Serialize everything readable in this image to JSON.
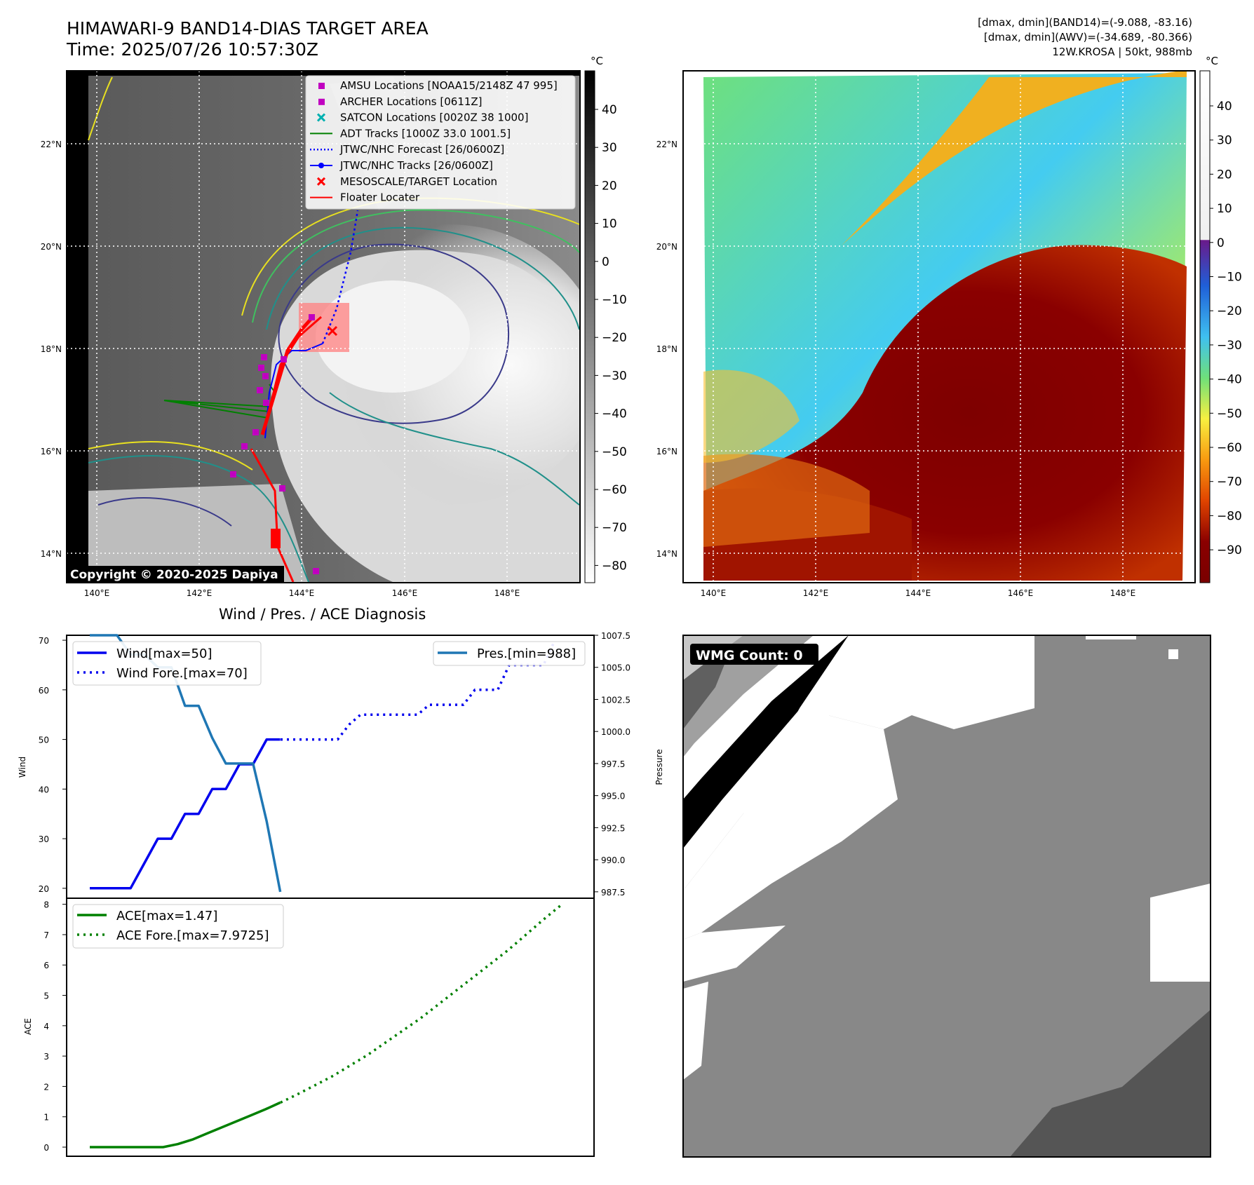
{
  "header": {
    "title_line1": "HIMAWARI-9 BAND14-DIAS TARGET AREA",
    "title_line2": "Time: 2025/07/26 10:57:30Z",
    "meta_line1": "[dmax, dmin](BAND14)=(-9.088, -83.16)",
    "meta_line2": "[dmax, dmin](AWV)=(-34.689, -80.366)",
    "meta_line3": "12W.KROSA | 50kt, 988mb"
  },
  "copyright": "Copyright © 2020-2025 Dapiya",
  "diagnosis_title": "Wind / Pres. / ACE Diagnosis",
  "wmg_label": "WMG Count: 0",
  "maps": {
    "lat_labels": [
      "22°N",
      "20°N",
      "18°N",
      "16°N",
      "14°N"
    ],
    "lon_labels": [
      "140°E",
      "142°E",
      "144°E",
      "146°E",
      "148°E"
    ],
    "legend": [
      {
        "marker": "square",
        "color": "#c000c0",
        "label": "AMSU Locations [NOAA15/2148Z 47 995]"
      },
      {
        "marker": "square",
        "color": "#c000c0",
        "label": "ARCHER Locations [0611Z]"
      },
      {
        "marker": "x",
        "color": "#00b0b0",
        "label": "SATCON Locations [0020Z 38 1000]"
      },
      {
        "marker": "line",
        "color": "#008000",
        "label": "ADT Tracks [1000Z 33.0 1001.5]"
      },
      {
        "marker": "dotted",
        "color": "#0000ff",
        "label": "JTWC/NHC Forecast [26/0600Z]"
      },
      {
        "marker": "dotline",
        "color": "#0000ff",
        "label": "JTWC/NHC Tracks [26/0600Z]"
      },
      {
        "marker": "x",
        "color": "#ff0000",
        "label": "MESOSCALE/TARGET Location"
      },
      {
        "marker": "line",
        "color": "#ff0000",
        "label": "Floater Locater"
      }
    ],
    "colorbar_left": {
      "unit": "°C",
      "ticks": [
        "40",
        "30",
        "20",
        "10",
        "0",
        "−10",
        "−20",
        "−30",
        "−40",
        "−50",
        "−60",
        "−70",
        "−80"
      ]
    },
    "colorbar_right": {
      "unit": "°C",
      "ticks": [
        "40",
        "30",
        "20",
        "10",
        "0",
        "−10",
        "−20",
        "−30",
        "−40",
        "−50",
        "−60",
        "−70",
        "−80",
        "−90"
      ]
    },
    "colors": {
      "accent_red": "#ff0000",
      "track_blue": "#0000ff",
      "adt_green": "#008000",
      "amsu_magenta": "#c000c0",
      "satcon_cyan": "#00b0b0"
    }
  },
  "chart_data": [
    {
      "type": "line",
      "ylabel": "Wind",
      "ylim": [
        18,
        71
      ],
      "yticks": [
        20,
        30,
        40,
        50,
        60,
        70
      ],
      "series": [
        {
          "name": "Wind[max=50]",
          "style": "solid",
          "color": "#0000ee",
          "values": [
            20,
            20,
            20,
            20,
            25,
            30,
            30,
            35,
            35,
            40,
            40,
            45,
            45,
            50,
            50
          ]
        },
        {
          "name": "Wind Fore.[max=70]",
          "style": "dotted",
          "color": "#0000ee",
          "values": [
            50,
            50,
            50,
            50,
            50,
            50,
            53,
            55,
            55,
            55,
            55,
            55,
            55,
            57,
            57,
            57,
            57,
            60,
            60,
            60,
            65,
            65,
            65,
            65,
            70
          ]
        }
      ]
    },
    {
      "type": "line",
      "ylabel": "Pressure",
      "ylim": [
        987.0,
        1007.5
      ],
      "yticks": [
        "1007.5",
        "1005.0",
        "1002.5",
        "1000.0",
        "997.5",
        "995.0",
        "992.5",
        "990.0",
        "987.5"
      ],
      "series": [
        {
          "name": "Pres.[min=988]",
          "style": "solid",
          "color": "#1f77b4",
          "values": [
            1007.5,
            1007.5,
            1007.5,
            1006,
            1006,
            1005,
            1005,
            1002,
            1002,
            999.5,
            997.5,
            997.5,
            997.5,
            993,
            987.5
          ]
        }
      ]
    },
    {
      "type": "line",
      "ylabel": "ACE",
      "ylim": [
        -0.3,
        8.2
      ],
      "yticks": [
        0,
        1,
        2,
        3,
        4,
        5,
        6,
        7,
        8
      ],
      "series": [
        {
          "name": "ACE[max=1.47]",
          "style": "solid",
          "color": "#008000",
          "values": [
            0,
            0,
            0,
            0,
            0,
            0,
            0.1,
            0.25,
            0.45,
            0.65,
            0.85,
            1.05,
            1.25,
            1.47
          ]
        },
        {
          "name": "ACE Fore.[max=7.9725]",
          "style": "dotted",
          "color": "#008000",
          "values": [
            1.47,
            1.75,
            2.05,
            2.35,
            2.7,
            3.05,
            3.45,
            3.85,
            4.25,
            4.7,
            5.15,
            5.6,
            6.05,
            6.5,
            7.0,
            7.5,
            7.9725
          ]
        }
      ]
    }
  ]
}
